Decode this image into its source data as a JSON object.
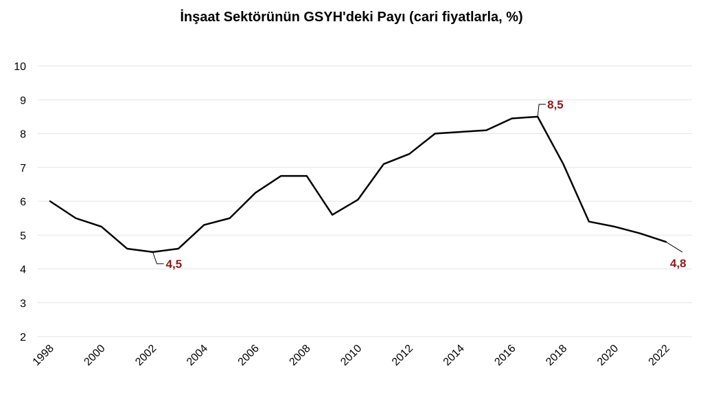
{
  "chart_data": {
    "type": "line",
    "title": "İnşaat Sektörünün GSYH'deki Payı (cari fiyatlarla, %)",
    "xlabel": "",
    "ylabel": "",
    "ylim": [
      2,
      10
    ],
    "y_ticks": [
      2,
      3,
      4,
      5,
      6,
      7,
      8,
      9,
      10
    ],
    "x_tick_labels": [
      "1998",
      "2000",
      "2002",
      "2004",
      "2006",
      "2008",
      "2010",
      "2012",
      "2014",
      "2016",
      "2018",
      "2020",
      "2022"
    ],
    "grid": true,
    "legend": "none",
    "line_color": "#000000",
    "label_color": "#8B1A1A",
    "series": [
      {
        "x": [
          1998,
          1999,
          2000,
          2001,
          2002,
          2003,
          2004,
          2005,
          2006,
          2007,
          2008,
          2009,
          2010,
          2011,
          2012,
          2013,
          2014,
          2015,
          2016,
          2017,
          2018,
          2019,
          2020,
          2021,
          2022
        ],
        "values": [
          6.0,
          5.5,
          5.25,
          4.6,
          4.5,
          4.6,
          5.3,
          5.5,
          6.25,
          6.75,
          6.75,
          5.6,
          6.05,
          7.1,
          7.4,
          8.0,
          8.05,
          8.1,
          8.45,
          8.5,
          7.1,
          5.4,
          5.25,
          5.05,
          4.8
        ]
      }
    ],
    "annotations": [
      {
        "x": 2002,
        "y": 4.5,
        "text": "4,5",
        "position": "below-right"
      },
      {
        "x": 2017,
        "y": 8.5,
        "text": "8,5",
        "position": "above-right"
      },
      {
        "x": 2022,
        "y": 4.8,
        "text": "4,8",
        "position": "below-right"
      }
    ]
  }
}
